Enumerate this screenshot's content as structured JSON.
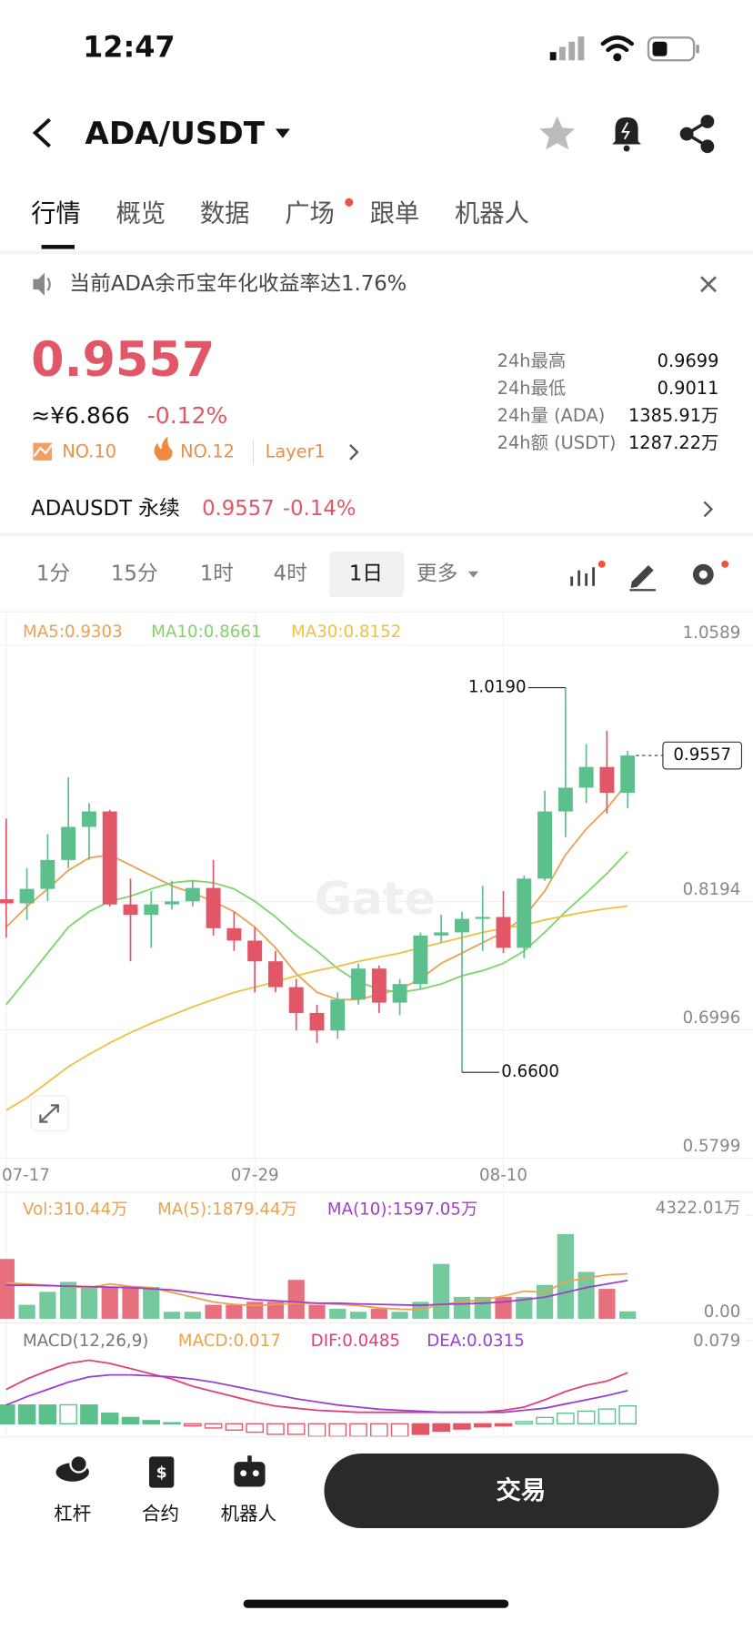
{
  "status_bar": {
    "time": "12:47"
  },
  "header": {
    "pair": "ADA/USDT"
  },
  "tabs": [
    "行情",
    "概览",
    "数据",
    "广场",
    "跟单",
    "机器人"
  ],
  "notice": "当前ADA余币宝年化收益率达1.76%",
  "price": {
    "last": "0.9557",
    "cny": "≈¥6.866",
    "change": "-0.12%",
    "rank1": "NO.10",
    "rank2": "NO.12",
    "tag": "Layer1"
  },
  "stats": [
    {
      "label": "24h最高",
      "value": "0.9699"
    },
    {
      "label": "24h最低",
      "value": "0.9011"
    },
    {
      "label": "24h量 (ADA)",
      "value": "1385.91万"
    },
    {
      "label": "24h额 (USDT)",
      "value": "1287.22万"
    }
  ],
  "perp": {
    "name": "ADAUSDT 永续",
    "price": "0.9557",
    "change": "-0.14%"
  },
  "intervals": [
    "1分",
    "15分",
    "1时",
    "4时",
    "1日",
    "更多"
  ],
  "chart_data": {
    "type": "candlestick",
    "watermark": "Gate",
    "up_color": "#5cc08c",
    "down_color": "#e25767",
    "categories": [
      "07-17",
      null,
      null,
      null,
      null,
      null,
      null,
      null,
      null,
      null,
      null,
      null,
      "07-29",
      null,
      null,
      null,
      null,
      null,
      null,
      null,
      null,
      null,
      null,
      null,
      "08-10",
      null,
      null,
      null,
      null,
      null,
      null
    ],
    "open": [
      0.8215,
      0.8177,
      0.8312,
      0.8582,
      0.8891,
      0.9035,
      0.8167,
      0.807,
      0.8167,
      0.8196,
      0.8321,
      0.7945,
      0.7829,
      0.7636,
      0.7395,
      0.7154,
      0.699,
      0.7279,
      0.7568,
      0.725,
      0.7424,
      0.7877,
      0.7906,
      0.8032,
      0.805,
      0.7762,
      0.8408,
      0.9035,
      0.9257,
      0.945,
      0.9209
    ],
    "high": [
      0.8968,
      0.8505,
      0.8823,
      0.9354,
      0.9113,
      0.905,
      0.8408,
      0.8292,
      0.8389,
      0.8389,
      0.8582,
      0.8099,
      0.7955,
      0.7733,
      0.7472,
      0.7231,
      0.7346,
      0.7617,
      0.7597,
      0.7472,
      0.7906,
      0.807,
      0.8099,
      0.8341,
      0.8292,
      0.8437,
      0.9228,
      1.019,
      0.9663,
      0.9788,
      0.96
    ],
    "low": [
      0.7858,
      0.8022,
      0.8196,
      0.8505,
      0.8582,
      0.8148,
      0.7636,
      0.7762,
      0.8119,
      0.8148,
      0.7877,
      0.7733,
      0.7346,
      0.7346,
      0.699,
      0.6874,
      0.6912,
      0.7231,
      0.7154,
      0.7134,
      0.7376,
      0.781,
      0.66,
      0.7733,
      0.7713,
      0.7665,
      0.8389,
      0.8794,
      0.9113,
      0.9016,
      0.9064
    ],
    "close": [
      0.8177,
      0.8312,
      0.8582,
      0.8891,
      0.9035,
      0.8167,
      0.807,
      0.8167,
      0.8196,
      0.8321,
      0.7945,
      0.7829,
      0.7636,
      0.7395,
      0.7154,
      0.699,
      0.7279,
      0.7568,
      0.725,
      0.7424,
      0.7877,
      0.7906,
      0.8032,
      0.805,
      0.7762,
      0.8408,
      0.9035,
      0.9257,
      0.945,
      0.9209,
      0.9557
    ],
    "high_label": "1.0190",
    "low_label": "0.6600",
    "last_label": "0.9557",
    "ylim": [
      0.5799,
      1.0589
    ],
    "yticks": [
      1.0589,
      0.8194,
      0.6996,
      0.5799
    ],
    "ma": [
      {
        "label": "MA5:0.9303",
        "color": "#e9a250",
        "values": [
          0.7955,
          0.8148,
          0.8312,
          0.8485,
          0.8601,
          0.863,
          0.8534,
          0.8437,
          0.8341,
          0.8273,
          0.8196,
          0.8099,
          0.7955,
          0.7762,
          0.752,
          0.7347,
          0.7279,
          0.7279,
          0.7327,
          0.7376,
          0.7472,
          0.7617,
          0.7713,
          0.781,
          0.7906,
          0.8051,
          0.8292,
          0.863,
          0.8871,
          0.9064,
          0.9303
        ]
      },
      {
        "label": "MA10:0.8661",
        "color": "#7fd46a",
        "values": [
          0.7231,
          0.7472,
          0.7713,
          0.7955,
          0.8099,
          0.8196,
          0.8244,
          0.8312,
          0.8369,
          0.8389,
          0.8369,
          0.8312,
          0.8196,
          0.8051,
          0.7877,
          0.7733,
          0.7568,
          0.7443,
          0.7376,
          0.7346,
          0.7376,
          0.7424,
          0.7501,
          0.7549,
          0.7617,
          0.7733,
          0.7906,
          0.8099,
          0.8273,
          0.8456,
          0.8661
        ]
      },
      {
        "label": "MA30:0.8152",
        "color": "#f0c040",
        "values": [
          0.6246,
          0.6362,
          0.6507,
          0.6652,
          0.6768,
          0.6874,
          0.697,
          0.7057,
          0.7134,
          0.7211,
          0.7279,
          0.7346,
          0.7395,
          0.7443,
          0.7501,
          0.7549,
          0.7588,
          0.7636,
          0.7675,
          0.7713,
          0.7762,
          0.781,
          0.7858,
          0.7906,
          0.7945,
          0.7974,
          0.8022,
          0.8061,
          0.8099,
          0.8128,
          0.8152
        ]
      }
    ],
    "volume": {
      "legend": "Vol:310.44万",
      "legend_color": "#e9a250",
      "values": [
        2494,
        582,
        1122,
        1538,
        1330,
        1330,
        1330,
        1330,
        291,
        291,
        582,
        582,
        707,
        707,
        1621,
        582,
        416,
        291,
        416,
        291,
        707,
        2286,
        914,
        914,
        914,
        914,
        1413,
        3533,
        1953,
        1247,
        310.44
      ],
      "ma": [
        {
          "label": "MA(5):1879.44万",
          "color": "#e9a250",
          "values": [
            1500,
            1450,
            1400,
            1350,
            1300,
            1450,
            1350,
            1300,
            1100,
            900,
            700,
            600,
            550,
            600,
            650,
            650,
            600,
            550,
            450,
            400,
            380,
            600,
            700,
            800,
            950,
            1150,
            1100,
            1550,
            1700,
            1830,
            1879.44
          ]
        },
        {
          "label": "MA(10):1597.05万",
          "color": "#a040c8",
          "values": [
            1400,
            1400,
            1380,
            1360,
            1340,
            1320,
            1300,
            1250,
            1200,
            1100,
            1000,
            900,
            800,
            750,
            700,
            650,
            650,
            620,
            600,
            580,
            560,
            600,
            620,
            650,
            700,
            800,
            900,
            1100,
            1300,
            1450,
            1597.05
          ]
        }
      ],
      "ylim": [
        0,
        4322.01
      ],
      "yticks": [
        {
          "value": 4322.01,
          "label": "4322.01万"
        },
        {
          "value": 0,
          "label": "0.00"
        }
      ]
    },
    "macd": {
      "title": "MACD(12,26,9)",
      "hist_label": "MACD:0.017",
      "hist_color": "#e9a250",
      "hist": [
        0.0178,
        0.0178,
        0.0178,
        0.018,
        0.0178,
        0.01,
        0.006,
        0.003,
        0.001,
        -0.002,
        -0.004,
        -0.006,
        -0.008,
        -0.01,
        -0.01,
        -0.012,
        -0.012,
        -0.012,
        -0.012,
        -0.012,
        -0.01,
        -0.007,
        -0.005,
        -0.003,
        -0.002,
        0.002,
        0.006,
        0.01,
        0.012,
        0.014,
        0.017
      ],
      "lines": [
        {
          "label": "DIF:0.0485",
          "color": "#e0407a",
          "values": [
            0.0326,
            0.0425,
            0.0504,
            0.0573,
            0.0603,
            0.0573,
            0.0524,
            0.0474,
            0.0425,
            0.0356,
            0.0306,
            0.0257,
            0.0208,
            0.0168,
            0.0148,
            0.0128,
            0.0119,
            0.0109,
            0.0109,
            0.0109,
            0.0109,
            0.0109,
            0.0109,
            0.0109,
            0.0128,
            0.0158,
            0.0227,
            0.0306,
            0.0366,
            0.0405,
            0.0485
          ]
        },
        {
          "label": "DEA:0.0315",
          "color": "#9a40d0",
          "values": [
            0.0178,
            0.0257,
            0.0326,
            0.0395,
            0.0445,
            0.0464,
            0.0464,
            0.0455,
            0.0445,
            0.0425,
            0.0395,
            0.0356,
            0.0316,
            0.0277,
            0.0237,
            0.0208,
            0.0178,
            0.0158,
            0.0138,
            0.0128,
            0.0119,
            0.0109,
            0.0109,
            0.0109,
            0.0109,
            0.0128,
            0.0148,
            0.0188,
            0.0227,
            0.0267,
            0.0315
          ]
        }
      ],
      "ylim": [
        -0.0125,
        0.079
      ],
      "yticks": [
        0.079
      ]
    }
  },
  "bottom_nav": [
    "杠杆",
    "合约",
    "机器人"
  ],
  "trade_button": "交易"
}
